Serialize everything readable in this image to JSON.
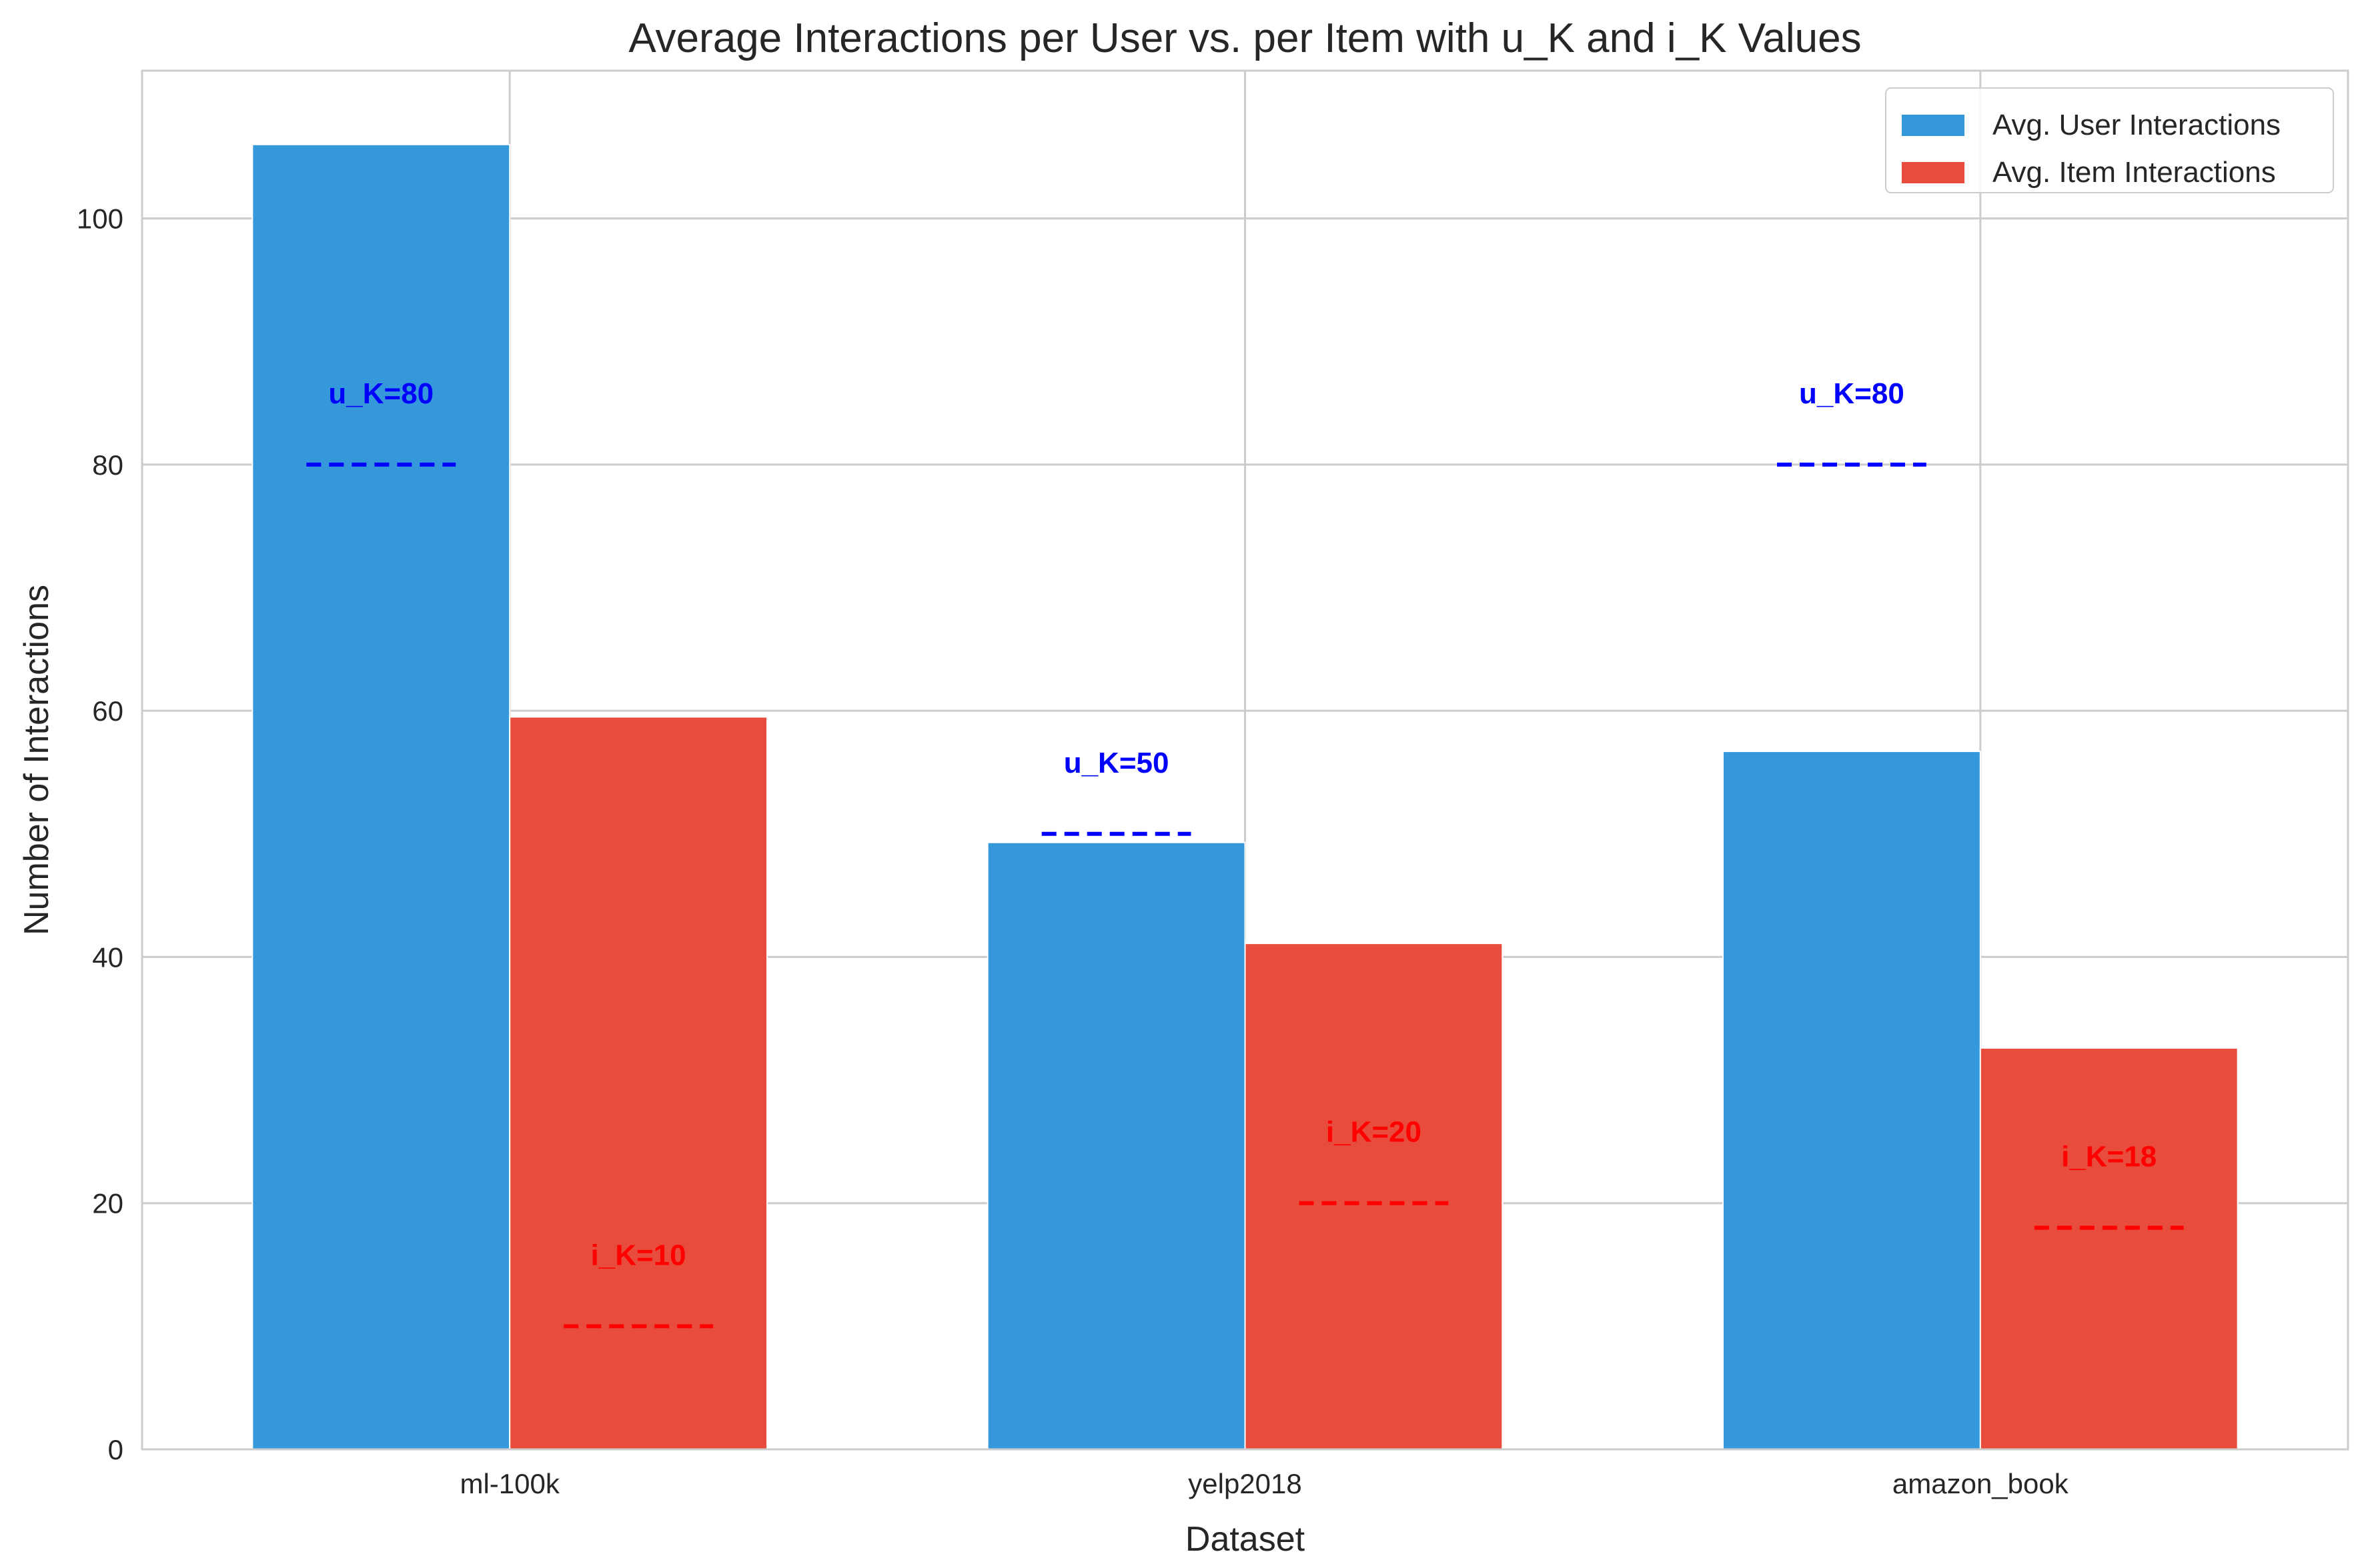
{
  "chart_data": {
    "type": "bar",
    "title": "Average Interactions per User vs. per Item with u_K and i_K Values",
    "xlabel": "Dataset",
    "ylabel": "Number of Interactions",
    "categories": [
      "ml-100k",
      "yelp2018",
      "amazon_book"
    ],
    "ylim": [
      0,
      112
    ],
    "yticks": [
      0,
      20,
      40,
      60,
      80,
      100
    ],
    "grid": true,
    "legend_position": "top-right",
    "series": [
      {
        "name": "Avg. User Interactions",
        "color": "#3498db",
        "values": [
          106.0,
          49.3,
          56.7
        ]
      },
      {
        "name": "Avg. Item Interactions",
        "color": "#e74c3c",
        "values": [
          59.5,
          41.1,
          32.6
        ]
      }
    ],
    "thresholds": {
      "user": {
        "values": [
          80,
          50,
          80
        ],
        "labels": [
          "u_K=80",
          "u_K=50",
          "u_K=80"
        ],
        "color": "#0000ff"
      },
      "item": {
        "values": [
          10,
          20,
          18
        ],
        "labels": [
          "i_K=10",
          "i_K=20",
          "i_K=18"
        ],
        "color": "#ff0000"
      }
    }
  }
}
